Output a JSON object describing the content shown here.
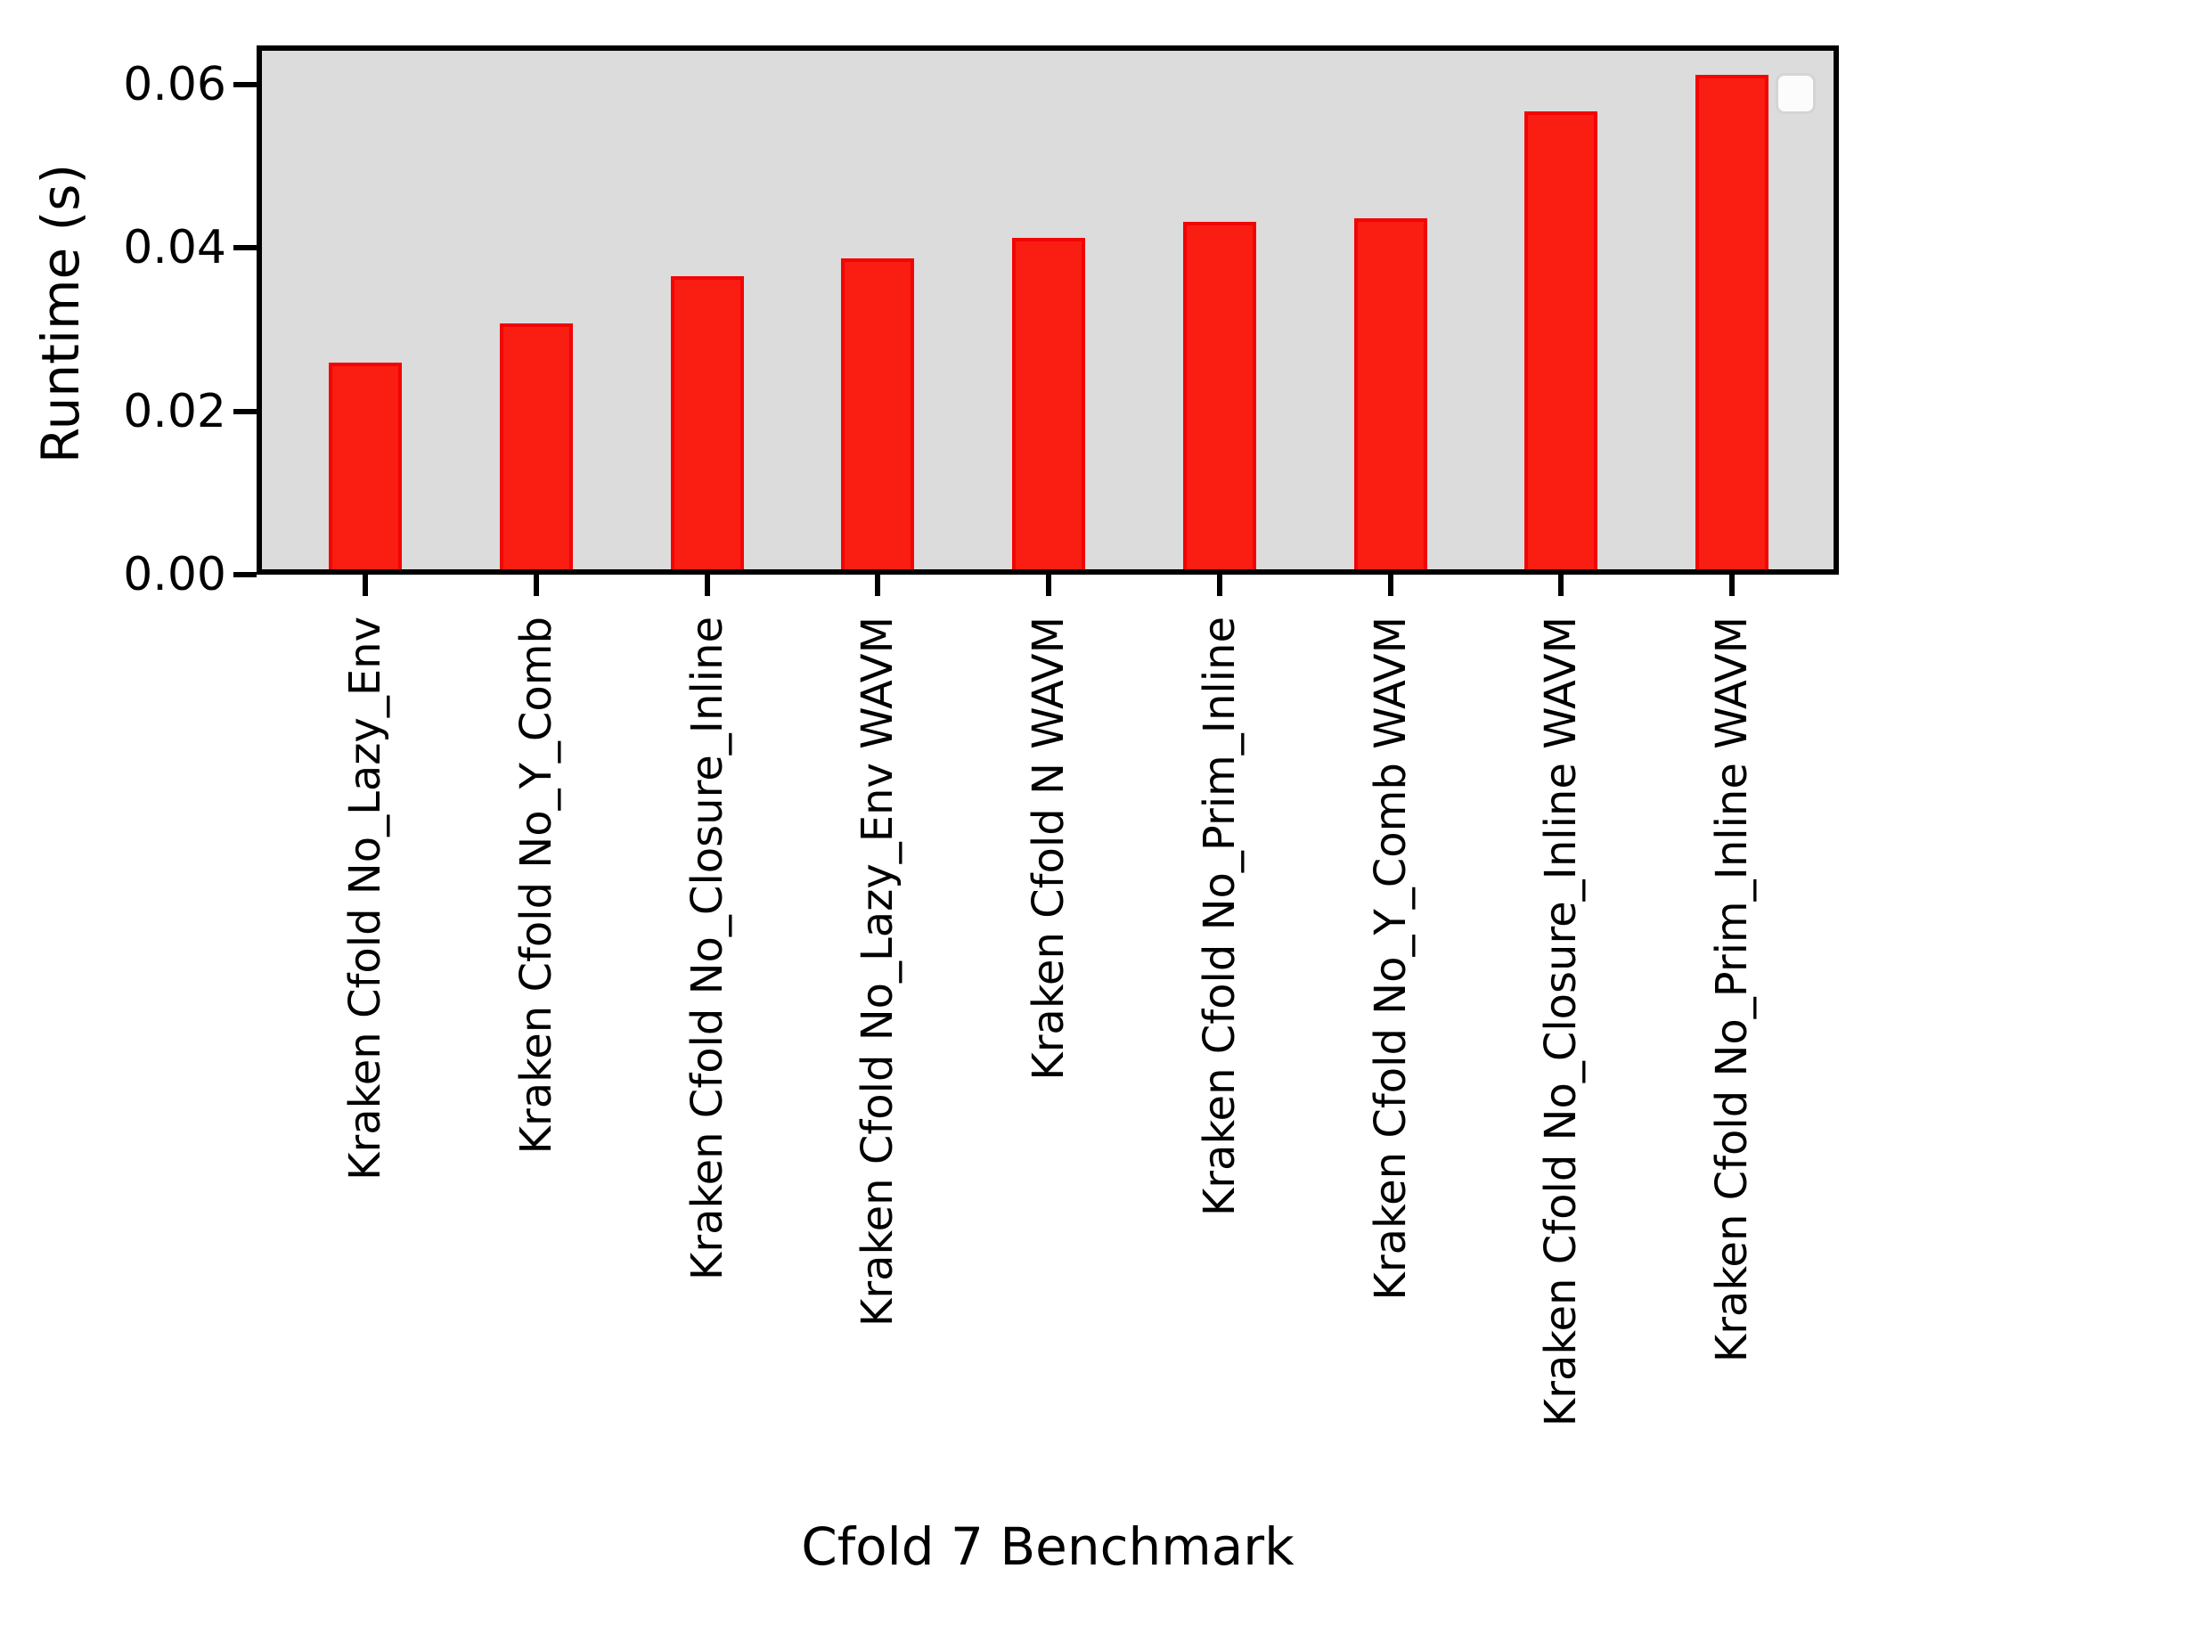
{
  "figure": {
    "background_color": "#ffffff",
    "plot_background_color": "#dcdcdc",
    "spine_color": "#000000",
    "tick_color": "#000000",
    "text_color": "#000000"
  },
  "legend": {
    "present": true,
    "position": "upper right",
    "entries": []
  },
  "chart_data": {
    "type": "bar",
    "title": "",
    "xlabel": "Cfold 7 Benchmark",
    "ylabel": "Runtime (s)",
    "categories": [
      "Kraken Cfold No_Lazy_Env",
      "Kraken Cfold No_Y_Comb",
      "Kraken Cfold No_Closure_Inline",
      "Kraken Cfold No_Lazy_Env WAVM",
      "Kraken Cfold N WAVM",
      "Kraken Cfold No_Prim_Inline",
      "Kraken Cfold No_Y_Comb WAVM",
      "Kraken Cfold No_Closure_Inline WAVM",
      "Kraken Cfold No_Prim_Inline WAVM"
    ],
    "values": [
      0.026,
      0.0308,
      0.0366,
      0.0387,
      0.0412,
      0.0432,
      0.0436,
      0.0567,
      0.0612
    ],
    "bar_color": "#f91d12",
    "bar_edge_color": "#f10505",
    "yticks": [
      {
        "value": 0.0,
        "label": "0.00"
      },
      {
        "value": 0.02,
        "label": "0.02"
      },
      {
        "value": 0.04,
        "label": "0.04"
      },
      {
        "value": 0.06,
        "label": "0.06"
      }
    ],
    "ylim": [
      0,
      0.0642
    ],
    "grid": false,
    "legend_position": "upper right",
    "legend_entries": []
  }
}
